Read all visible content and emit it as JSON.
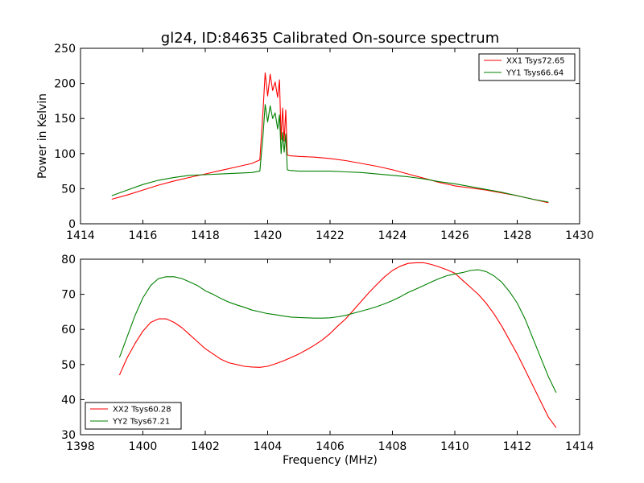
{
  "chart_data": [
    {
      "type": "line",
      "title": "gl24, ID:84635 Calibrated On-source spectrum",
      "xlabel": "",
      "ylabel": "Power in Kelvin",
      "xlim": [
        1414,
        1430
      ],
      "ylim": [
        0,
        250
      ],
      "xticks": [
        1414,
        1416,
        1418,
        1420,
        1422,
        1424,
        1426,
        1428,
        1430
      ],
      "yticks": [
        0,
        50,
        100,
        150,
        200,
        250
      ],
      "legend_position": "top-right",
      "series": [
        {
          "name": "XX1 Tsys72.65",
          "color": "#ff0000",
          "x": [
            1415.0,
            1415.5,
            1416.0,
            1416.5,
            1417.0,
            1417.5,
            1418.0,
            1418.5,
            1419.0,
            1419.5,
            1419.75,
            1419.85,
            1419.92,
            1420.0,
            1420.08,
            1420.16,
            1420.24,
            1420.32,
            1420.38,
            1420.43,
            1420.48,
            1420.53,
            1420.58,
            1420.63,
            1420.7,
            1421.0,
            1421.5,
            1422.0,
            1422.5,
            1423.0,
            1423.5,
            1424.0,
            1424.5,
            1425.0,
            1425.5,
            1426.0,
            1426.5,
            1427.0,
            1427.5,
            1428.0,
            1428.5,
            1429.0
          ],
          "values": [
            35,
            41,
            48,
            55,
            61,
            66,
            71,
            76,
            81,
            86,
            91,
            160,
            215,
            182,
            213,
            190,
            202,
            180,
            205,
            120,
            165,
            118,
            162,
            98,
            97,
            96,
            95,
            93,
            90,
            86,
            82,
            77,
            71,
            65,
            59,
            54,
            51,
            48,
            44,
            40,
            35,
            30
          ]
        },
        {
          "name": "YY1 Tsys66.64",
          "color": "#008000",
          "x": [
            1415.0,
            1415.5,
            1416.0,
            1416.5,
            1417.0,
            1417.5,
            1418.0,
            1418.5,
            1419.0,
            1419.5,
            1419.75,
            1419.85,
            1419.92,
            1420.0,
            1420.08,
            1420.16,
            1420.24,
            1420.32,
            1420.38,
            1420.43,
            1420.48,
            1420.53,
            1420.58,
            1420.63,
            1420.7,
            1421.0,
            1421.5,
            1422.0,
            1422.5,
            1423.0,
            1423.5,
            1424.0,
            1424.5,
            1425.0,
            1425.5,
            1426.0,
            1426.5,
            1427.0,
            1427.5,
            1428.0,
            1428.5,
            1429.0
          ],
          "values": [
            40,
            48,
            56,
            62,
            66,
            69,
            70,
            71,
            72,
            73,
            75,
            125,
            170,
            145,
            168,
            150,
            158,
            135,
            155,
            100,
            130,
            102,
            128,
            77,
            76,
            75,
            75,
            75,
            74,
            73,
            71,
            69,
            67,
            64,
            60,
            57,
            53,
            49,
            45,
            40,
            35,
            31
          ]
        }
      ]
    },
    {
      "type": "line",
      "title": "",
      "xlabel": "Frequency (MHz)",
      "ylabel": "",
      "xlim": [
        1398,
        1414
      ],
      "ylim": [
        30,
        80
      ],
      "xticks": [
        1398,
        1400,
        1402,
        1404,
        1406,
        1408,
        1410,
        1412,
        1414
      ],
      "yticks": [
        30,
        40,
        50,
        60,
        70,
        80
      ],
      "legend_position": "bottom-left",
      "series": [
        {
          "name": "XX2 Tsys60.28",
          "color": "#ff0000",
          "x": [
            1399.25,
            1399.5,
            1399.75,
            1400.0,
            1400.25,
            1400.5,
            1400.75,
            1401.0,
            1401.25,
            1401.5,
            1401.75,
            1402.0,
            1402.25,
            1402.5,
            1402.75,
            1403.0,
            1403.25,
            1403.5,
            1403.75,
            1404.0,
            1404.25,
            1404.5,
            1404.75,
            1405.0,
            1405.25,
            1405.5,
            1405.75,
            1406.0,
            1406.25,
            1406.5,
            1406.75,
            1407.0,
            1407.25,
            1407.5,
            1407.75,
            1408.0,
            1408.25,
            1408.5,
            1408.75,
            1409.0,
            1409.25,
            1409.5,
            1409.75,
            1410.0,
            1410.25,
            1410.5,
            1410.75,
            1411.0,
            1411.25,
            1411.5,
            1411.75,
            1412.0,
            1412.25,
            1412.5,
            1412.75,
            1413.0,
            1413.25
          ],
          "values": [
            47,
            52,
            56,
            59.5,
            62,
            63,
            63,
            62,
            60.5,
            58.5,
            56.5,
            54.5,
            53,
            51.5,
            50.5,
            50,
            49.5,
            49.3,
            49.2,
            49.5,
            50.2,
            51,
            52,
            53,
            54.2,
            55.5,
            57,
            58.8,
            61,
            63,
            65.5,
            68,
            70.5,
            72.8,
            75,
            76.8,
            78,
            78.8,
            79,
            79,
            78.5,
            77.8,
            77,
            76,
            74,
            72,
            70,
            67.5,
            64.5,
            61,
            57,
            53,
            48.5,
            44,
            39.5,
            35,
            32
          ]
        },
        {
          "name": "YY2 Tsys67.21",
          "color": "#008000",
          "x": [
            1399.25,
            1399.5,
            1399.75,
            1400.0,
            1400.25,
            1400.5,
            1400.75,
            1401.0,
            1401.25,
            1401.5,
            1401.75,
            1402.0,
            1402.25,
            1402.5,
            1402.75,
            1403.0,
            1403.25,
            1403.5,
            1403.75,
            1404.0,
            1404.25,
            1404.5,
            1404.75,
            1405.0,
            1405.25,
            1405.5,
            1405.75,
            1406.0,
            1406.25,
            1406.5,
            1406.75,
            1407.0,
            1407.25,
            1407.5,
            1407.75,
            1408.0,
            1408.25,
            1408.5,
            1408.75,
            1409.0,
            1409.25,
            1409.5,
            1409.75,
            1410.0,
            1410.25,
            1410.5,
            1410.75,
            1411.0,
            1411.25,
            1411.5,
            1411.75,
            1412.0,
            1412.25,
            1412.5,
            1412.75,
            1413.0,
            1413.25
          ],
          "values": [
            52,
            58,
            64,
            69,
            72.5,
            74.5,
            75,
            75,
            74.5,
            73.5,
            72.5,
            71,
            70,
            68.8,
            67.8,
            67,
            66.3,
            65.5,
            65,
            64.5,
            64.2,
            63.8,
            63.5,
            63.4,
            63.3,
            63.2,
            63.2,
            63.3,
            63.6,
            64,
            64.6,
            65.2,
            65.8,
            66.5,
            67.3,
            68.2,
            69.3,
            70.5,
            71.5,
            72.5,
            73.5,
            74.5,
            75.3,
            75.8,
            76.2,
            76.8,
            77,
            76.5,
            75.3,
            73.5,
            70.8,
            67.5,
            63,
            57.5,
            52,
            46.5,
            42
          ]
        }
      ]
    }
  ]
}
